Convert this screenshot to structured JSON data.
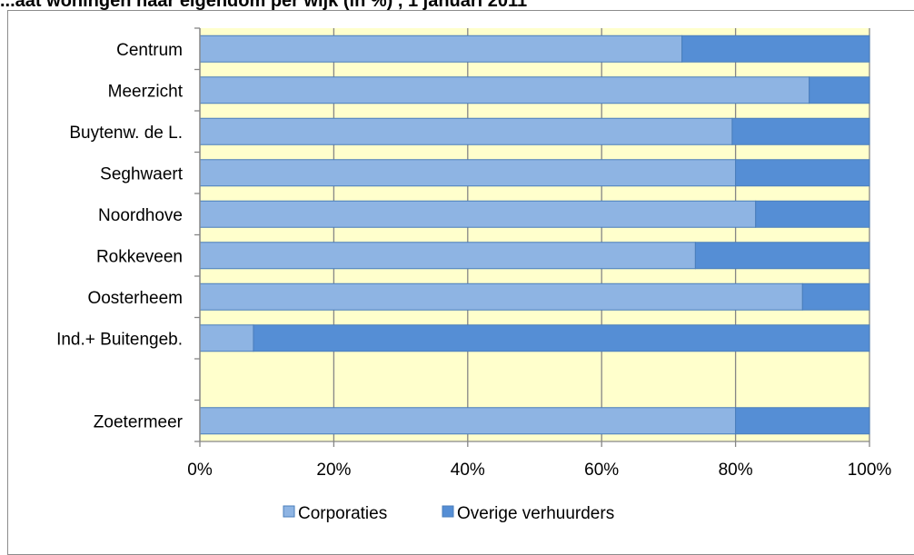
{
  "chart_data": {
    "type": "bar",
    "orientation": "horizontal",
    "stacked": "percent",
    "title": "...aat woningen naar eigendom per wijk (in %) , 1 januari 2011",
    "categories": [
      "Centrum",
      "Meerzicht",
      "Buytenw. de L.",
      "Seghwaert",
      "Noordhove",
      "Rokkeveen",
      "Oosterheem",
      "Ind.+ Buitengeb.",
      "",
      "Zoetermeer"
    ],
    "series": [
      {
        "name": "Corporaties",
        "color": "#8eb4e3",
        "values": [
          72,
          91,
          79.5,
          80,
          83,
          74,
          90,
          8,
          null,
          80
        ]
      },
      {
        "name": "Overige verhuurders",
        "color": "#558ed5",
        "values": [
          28,
          9,
          20.5,
          20,
          17,
          26,
          10,
          92,
          null,
          20
        ]
      }
    ],
    "x_ticks": [
      "0%",
      "20%",
      "40%",
      "60%",
      "80%",
      "100%"
    ],
    "xlim": [
      0,
      100
    ],
    "grid": true,
    "plot_background": "#ffffcc",
    "legend_position": "bottom"
  }
}
